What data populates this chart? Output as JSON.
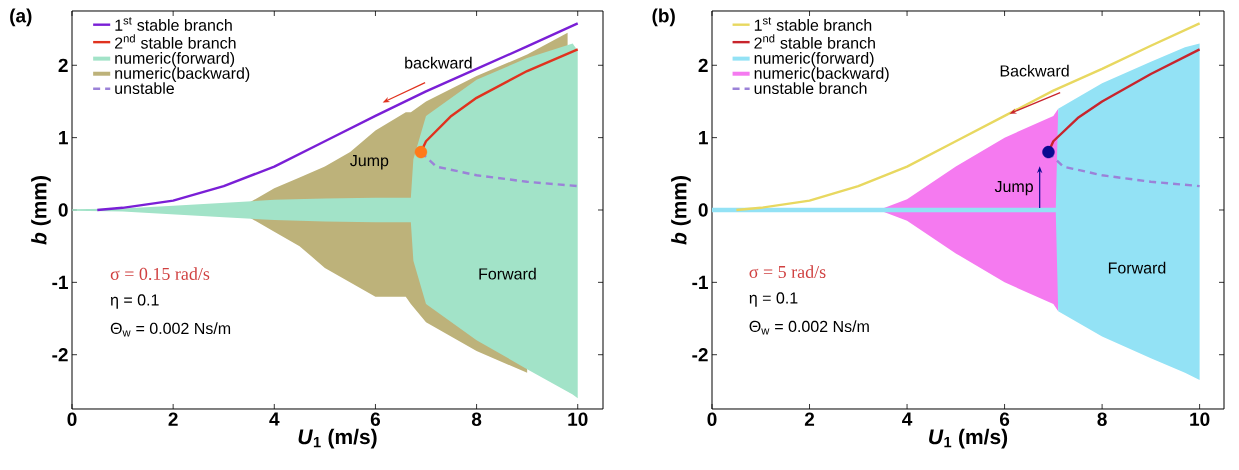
{
  "chart_data": [
    {
      "type": "line",
      "title": "(a)",
      "xlabel": "*U*$_{1}$ (m/s)",
      "ylabel": "*b* (mm)",
      "xlim": [
        0,
        10.5
      ],
      "ylim": [
        -2.75,
        2.75
      ],
      "xticks": [
        0,
        2,
        4,
        6,
        8,
        10
      ],
      "yticks": [
        -2,
        -1,
        0,
        1,
        2
      ],
      "legend": "top left",
      "series": [
        {
          "name": "1$^{st}$ stable branch",
          "color": "#7a1fd6",
          "x": [
            0.5,
            1,
            2,
            3,
            4,
            5,
            6,
            7,
            8,
            9,
            10
          ],
          "values": [
            0,
            0.03,
            0.13,
            0.33,
            0.6,
            0.95,
            1.3,
            1.64,
            1.95,
            2.26,
            2.58
          ]
        },
        {
          "name": "2$^{nd}$ stable branch",
          "color": "#e0321e",
          "x": [
            6.9,
            7,
            7.5,
            8,
            9,
            10
          ],
          "values": [
            0.8,
            0.95,
            1.3,
            1.55,
            1.92,
            2.22
          ]
        },
        {
          "name": "numeric(forward)",
          "type": "area",
          "color": "#a2e3c8",
          "x": [
            0,
            1,
            2,
            3,
            4,
            5,
            6,
            6.7,
            6.75,
            7,
            8,
            9,
            9.9,
            10
          ],
          "values": [
            0.01,
            0.02,
            0.06,
            0.1,
            0.14,
            0.16,
            0.17,
            0.17,
            0.7,
            1.3,
            1.8,
            2.1,
            2.3,
            2.2
          ]
        },
        {
          "type": "area",
          "color": "#a2e3c8",
          "x": [
            0,
            1,
            2,
            3,
            4,
            5,
            6,
            6.7,
            6.75,
            7,
            8,
            9,
            9.9,
            10
          ],
          "values": [
            -0.01,
            -0.02,
            -0.06,
            -0.1,
            -0.14,
            -0.16,
            -0.17,
            -0.17,
            -0.7,
            -1.3,
            -1.8,
            -2.2,
            -2.55,
            -2.6
          ]
        },
        {
          "name": "numeric(backward)",
          "type": "area",
          "color": "#bdb27a",
          "x": [
            3.5,
            4,
            4.5,
            5,
            5.5,
            6,
            6.6,
            6.7,
            7,
            8,
            9,
            9.8
          ],
          "values": [
            0.1,
            0.3,
            0.45,
            0.6,
            0.8,
            1.1,
            1.35,
            1.35,
            1.5,
            1.85,
            2.15,
            2.45
          ]
        },
        {
          "type": "area",
          "color": "#bdb27a",
          "x": [
            3.5,
            4,
            4.5,
            5,
            5.5,
            6,
            6.6,
            6.7,
            7,
            8,
            9
          ],
          "values": [
            -0.1,
            -0.3,
            -0.5,
            -0.8,
            -1.0,
            -1.2,
            -1.2,
            -1.3,
            -1.55,
            -1.95,
            -2.25
          ]
        },
        {
          "name": "unstable",
          "color": "#9b82d8",
          "line_style": "dashed",
          "x": [
            6.9,
            7.2,
            8,
            9,
            10
          ],
          "values": [
            0.8,
            0.6,
            0.48,
            0.39,
            0.33
          ]
        },
        {
          "type": "scatter",
          "color": "#ff7a1a",
          "x": [
            6.9
          ],
          "values": [
            0.8
          ]
        }
      ],
      "annotations": [
        "σ = 0.15 rad/s",
        "η = 0.1",
        "Θ$_{w}$ = 0.002 Ns/m",
        "Jump",
        "backward",
        "Forward"
      ]
    },
    {
      "type": "line",
      "title": "(b)",
      "xlabel": "*U*$_{1}$ (m/s)",
      "ylabel": "*b* (mm)",
      "xlim": [
        0,
        10.5
      ],
      "ylim": [
        -2.75,
        2.75
      ],
      "xticks": [
        0,
        2,
        4,
        6,
        8,
        10
      ],
      "yticks": [
        -2,
        -1,
        0,
        1,
        2
      ],
      "legend": "top left",
      "series": [
        {
          "name": "1$^{st}$ stable branch",
          "color": "#e8d860",
          "x": [
            0.5,
            1,
            2,
            3,
            4,
            5,
            6,
            7,
            8,
            9,
            10
          ],
          "values": [
            0,
            0.03,
            0.13,
            0.33,
            0.6,
            0.95,
            1.3,
            1.65,
            1.95,
            2.27,
            2.58
          ]
        },
        {
          "name": "2$^{nd}$ stable branch",
          "color": "#c8242c",
          "x": [
            6.9,
            7,
            7.5,
            8,
            9,
            10
          ],
          "values": [
            0.8,
            0.95,
            1.27,
            1.5,
            1.88,
            2.22
          ]
        },
        {
          "name": "numeric(forward)",
          "type": "area",
          "color": "#93e2f5",
          "x": [
            0,
            3.5,
            7.05,
            7.1,
            8,
            9,
            9.7,
            10
          ],
          "values": [
            0.03,
            0.03,
            0.03,
            1.4,
            1.75,
            2.05,
            2.25,
            2.3
          ]
        },
        {
          "type": "area",
          "color": "#93e2f5",
          "x": [
            0,
            3.5,
            7.05,
            7.1,
            8,
            9,
            9.7,
            10
          ],
          "values": [
            -0.03,
            -0.03,
            -0.03,
            -1.4,
            -1.75,
            -2.05,
            -2.25,
            -2.35
          ]
        },
        {
          "name": "numeric(backward)",
          "type": "area",
          "color": "#f57af0",
          "x": [
            3.5,
            4,
            5,
            6,
            7,
            7.1
          ],
          "values": [
            0.02,
            0.15,
            0.6,
            1.0,
            1.3,
            1.4
          ]
        },
        {
          "type": "area",
          "color": "#f57af0",
          "x": [
            3.5,
            4,
            5,
            6,
            7,
            7.1
          ],
          "values": [
            -0.02,
            -0.15,
            -0.6,
            -1.0,
            -1.3,
            -1.4
          ]
        },
        {
          "name": "unstable branch",
          "color": "#9b82d8",
          "line_style": "dashed",
          "x": [
            6.9,
            7.2,
            8,
            9,
            10
          ],
          "values": [
            0.8,
            0.6,
            0.48,
            0.39,
            0.33
          ]
        },
        {
          "type": "scatter",
          "color": "#0a0a90",
          "x": [
            6.9
          ],
          "values": [
            0.8
          ]
        }
      ],
      "annotations": [
        "σ = 5 rad/s",
        "η = 0.1",
        "Θ$_{w}$ = 0.002 Ns/m",
        "Jump",
        {
          "text": "Backward",
          "x": 6.1,
          "y": 1.33
        },
        "Forward"
      ]
    }
  ]
}
